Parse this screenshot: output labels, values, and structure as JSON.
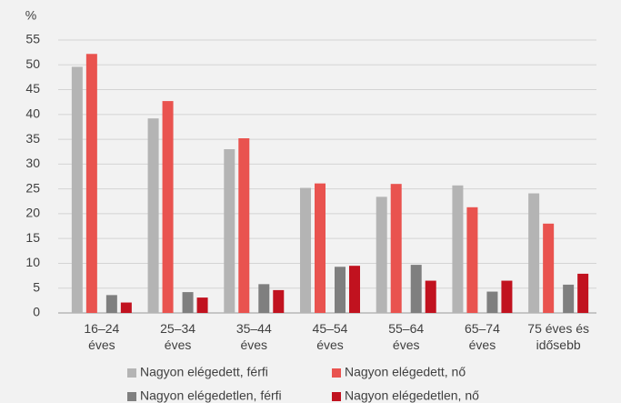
{
  "chart_data": {
    "type": "bar",
    "y_unit": "%",
    "categories": [
      "16–24\néves",
      "25–34\néves",
      "35–44\néves",
      "45–54\néves",
      "55–64\néves",
      "65–74\néves",
      "75 éves és\nidősebb"
    ],
    "series": [
      {
        "name": "Nagyon elégedett, férfi",
        "color": "#b4b4b4",
        "values": [
          49.6,
          39.2,
          33.0,
          25.2,
          23.4,
          25.7,
          24.1
        ]
      },
      {
        "name": "Nagyon elégedett, nő",
        "color": "#e9534f",
        "values": [
          52.2,
          42.7,
          35.2,
          26.1,
          26.0,
          21.3,
          18.0
        ]
      },
      {
        "name": "Nagyon elégedetlen, férfi",
        "color": "#7f7f7f",
        "values": [
          3.6,
          4.2,
          5.8,
          9.3,
          9.7,
          4.3,
          5.7
        ]
      },
      {
        "name": "Nagyon elégedetlen, nő",
        "color": "#c1121f",
        "values": [
          2.1,
          3.1,
          4.6,
          9.5,
          6.5,
          6.5,
          7.9
        ]
      }
    ],
    "ylim": [
      0,
      55
    ],
    "yticks": [
      0,
      5,
      10,
      15,
      20,
      25,
      30,
      35,
      40,
      45,
      50,
      55
    ],
    "grid": true,
    "legend": "bottom"
  }
}
